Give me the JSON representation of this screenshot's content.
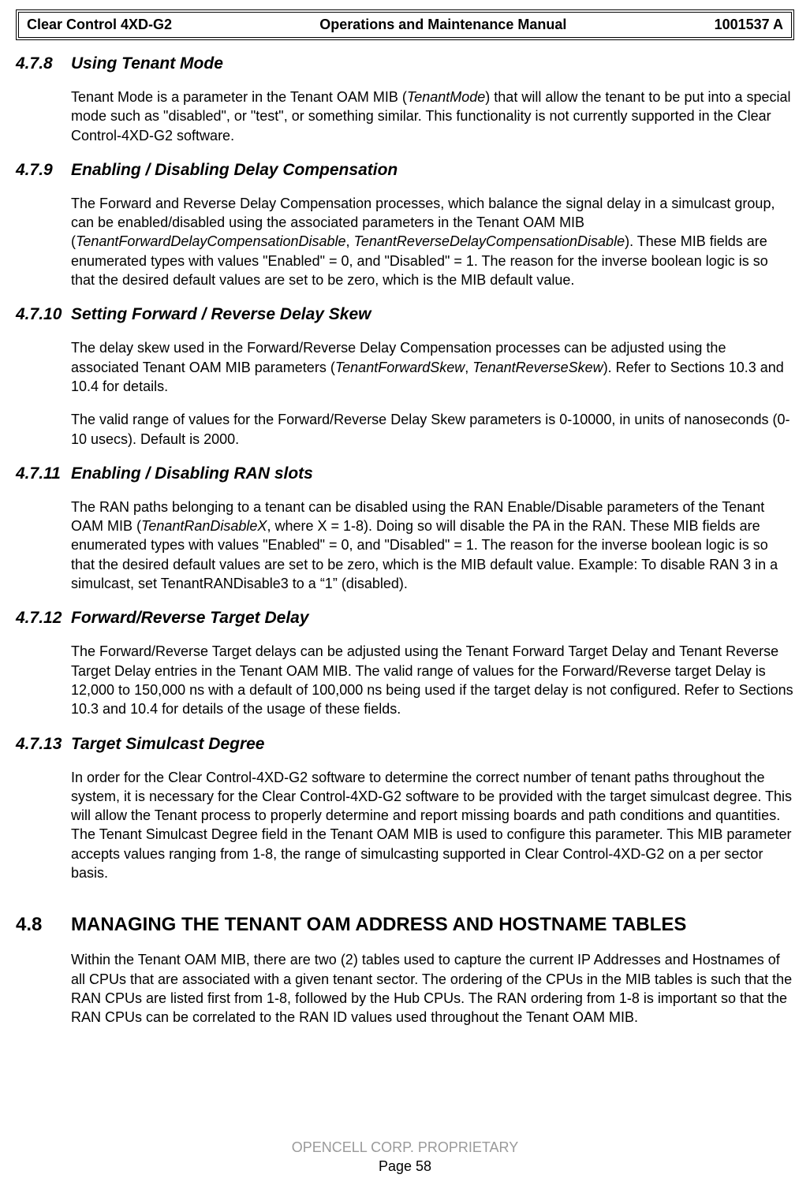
{
  "header": {
    "left": "Clear Control 4XD-G2",
    "center": "Operations and Maintenance Manual",
    "right": "1001537 A"
  },
  "sections": [
    {
      "num": "4.7.8",
      "title": "Using Tenant Mode",
      "paras": [
        {
          "html": "Tenant Mode is a parameter in the Tenant OAM MIB (<span class=\"ital\">TenantMode</span>) that will allow the tenant to be put into a special mode such as \"disabled\", or \"test\", or something similar. This functionality is not currently supported in the Clear Control-4XD-G2 software."
        }
      ]
    },
    {
      "num": "4.7.9",
      "title": "Enabling / Disabling Delay Compensation",
      "paras": [
        {
          "html": "The Forward and Reverse Delay Compensation processes, which balance the signal delay in a simulcast group, can be enabled/disabled using the associated parameters in the Tenant OAM MIB (<span class=\"ital\">TenantForwardDelayCompensationDisable</span>, <span class=\"ital\">TenantReverseDelayCompensationDisable</span>). These MIB fields are enumerated types with values \"Enabled\" = 0, and \"Disabled\" = 1. The reason for the inverse boolean logic is so that the desired default values are set to be zero, which is the MIB default value."
        }
      ]
    },
    {
      "num": "4.7.10",
      "title": "Setting Forward / Reverse Delay Skew",
      "paras": [
        {
          "html": "The delay skew used in the Forward/Reverse Delay Compensation processes can be adjusted using the associated Tenant OAM MIB parameters (<span class=\"ital\">TenantForwardSkew</span>, <span class=\"ital\">TenantReverseSkew</span>). Refer to Sections 10.3 and 10.4 for details."
        },
        {
          "html": "The valid range of values for the Forward/Reverse Delay Skew parameters is 0-10000, in units of nanoseconds (0-10 usecs).  Default is 2000."
        }
      ]
    },
    {
      "num": "4.7.11",
      "title": "Enabling / Disabling RAN slots",
      "paras": [
        {
          "html": "The RAN paths belonging to a tenant can be disabled using the RAN Enable/Disable parameters of the Tenant OAM MIB (<span class=\"ital\">TenantRanDisableX</span>, where X = 1-8). Doing so will disable the PA in the RAN.  These MIB fields are enumerated types with values \"Enabled\" = 0, and \"Disabled\" = 1. The reason for the inverse boolean logic is so that the desired default values are set to be zero, which is the MIB default value. Example:  To disable RAN 3 in a simulcast, set TenantRANDisable3 to a “1” (disabled)."
        }
      ]
    },
    {
      "num": "4.7.12",
      "title": "Forward/Reverse Target Delay",
      "paras": [
        {
          "html": "The Forward/Reverse Target delays can be adjusted using the Tenant Forward Target Delay and Tenant Reverse Target Delay entries in the Tenant OAM MIB.  The valid range of values for the Forward/Reverse target Delay is 12,000 to 150,000 ns with a default of 100,000 ns being used if the target delay is not configured. Refer to Sections 10.3 and 10.4 for details of the usage of these fields."
        }
      ]
    },
    {
      "num": "4.7.13",
      "title": "Target Simulcast Degree",
      "paras": [
        {
          "html": "In order for the Clear Control-4XD-G2 software to determine the correct number of tenant paths throughout the system, it is necessary for the Clear Control-4XD-G2 software to be provided with the target simulcast degree. This will allow the Tenant process to properly determine and report missing boards and path conditions and quantities. The Tenant Simulcast Degree field in the Tenant OAM MIB is used to configure this parameter. This MIB parameter accepts values ranging from 1-8, the range of simulcasting supported in Clear Control-4XD-G2 on a per sector basis."
        }
      ]
    }
  ],
  "major_section": {
    "num": "4.8",
    "title": "MANAGING THE TENANT OAM ADDRESS AND HOSTNAME TABLES",
    "paras": [
      {
        "html": "Within the Tenant OAM MIB, there are two (2) tables used to capture the current IP Addresses and Hostnames of all CPUs that are associated with a given tenant sector. The ordering of the CPUs in the MIB tables is such that the RAN CPUs are listed first from 1-8, followed by the Hub CPUs. The RAN ordering from 1-8 is important so that the RAN CPUs can be correlated to the RAN ID values used throughout the Tenant OAM MIB."
      }
    ]
  },
  "footer": {
    "line1": "OPENCELL CORP.  PROPRIETARY",
    "line2": "Page 58"
  }
}
